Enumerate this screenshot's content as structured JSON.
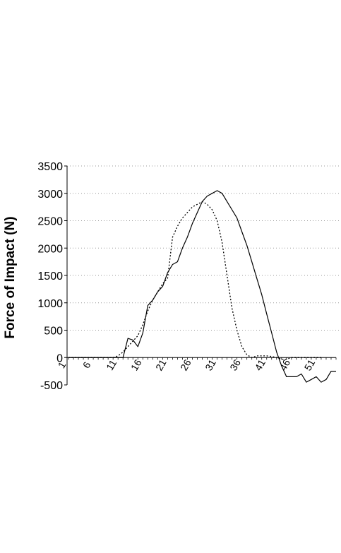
{
  "chart_data": {
    "type": "line",
    "title": "",
    "xlabel": "",
    "ylabel": "Force of Impact (N)",
    "xlim": [
      1,
      55
    ],
    "ylim": [
      -500,
      3500
    ],
    "yticks": [
      -500,
      0,
      500,
      1000,
      1500,
      2000,
      2500,
      3000,
      3500
    ],
    "xticks": [
      1,
      6,
      11,
      16,
      21,
      26,
      31,
      36,
      41,
      46,
      51
    ],
    "grid": true,
    "legend": "none",
    "series": [
      {
        "style": "solid",
        "color": "#000000",
        "x": [
          1,
          2,
          3,
          4,
          5,
          6,
          7,
          8,
          9,
          10,
          11,
          12,
          13,
          14,
          15,
          16,
          17,
          18,
          19,
          20,
          21,
          22,
          23,
          24,
          25,
          26,
          27,
          28,
          29,
          30,
          31,
          32,
          33,
          34,
          35,
          36,
          37,
          38,
          39,
          40,
          41,
          42,
          43,
          44,
          45,
          46,
          47,
          48,
          49,
          50,
          51,
          52,
          53,
          54,
          55
        ],
        "values": [
          0,
          0,
          0,
          0,
          0,
          0,
          0,
          0,
          0,
          0,
          0,
          0,
          350,
          320,
          200,
          450,
          950,
          1050,
          1200,
          1300,
          1550,
          1700,
          1750,
          2000,
          2200,
          2450,
          2650,
          2850,
          2950,
          3000,
          3050,
          3000,
          2850,
          2700,
          2550,
          2300,
          2050,
          1750,
          1450,
          1150,
          800,
          450,
          100,
          -150,
          -350,
          -350,
          -350,
          -300,
          -450,
          -400,
          -350,
          -450,
          -400,
          -250,
          -250
        ]
      },
      {
        "style": "dotted",
        "color": "#000000",
        "x": [
          1,
          2,
          3,
          4,
          5,
          6,
          7,
          8,
          9,
          10,
          11,
          12,
          13,
          14,
          15,
          16,
          17,
          18,
          19,
          20,
          21,
          22,
          23,
          24,
          25,
          26,
          27,
          28,
          29,
          30,
          31,
          32,
          33,
          34,
          35,
          36,
          37,
          38,
          39,
          40,
          41,
          42,
          43,
          44,
          45,
          46,
          47,
          48,
          49,
          50,
          51,
          52
        ],
        "values": [
          0,
          0,
          0,
          0,
          0,
          0,
          0,
          0,
          0,
          0,
          30,
          100,
          200,
          300,
          400,
          600,
          850,
          1050,
          1200,
          1350,
          1450,
          2200,
          2400,
          2550,
          2650,
          2750,
          2800,
          2850,
          2800,
          2700,
          2500,
          2100,
          1500,
          900,
          500,
          200,
          50,
          0,
          30,
          30,
          30,
          20,
          0,
          -30,
          -30,
          0,
          0,
          0,
          0,
          0,
          0,
          0
        ]
      }
    ]
  }
}
